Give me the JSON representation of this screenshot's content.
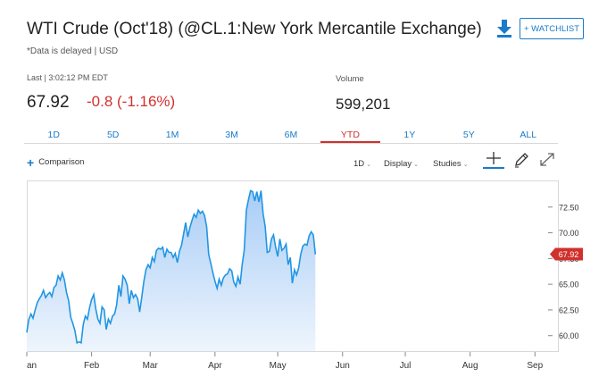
{
  "header": {
    "title": "WTI Crude (Oct'18) (@CL.1:New York Mercantile Exchange)",
    "delay_note": "*Data is delayed | USD",
    "watchlist_label": "+ WATCHLIST",
    "download_icon": "download-icon"
  },
  "quote": {
    "last_label": "Last | 3:02:12 PM EDT",
    "price": "67.92",
    "change": "-0.8 (-1.16%)",
    "volume_label": "Volume",
    "volume_value": "599,201"
  },
  "range_tabs": [
    {
      "label": "1D",
      "active": false
    },
    {
      "label": "5D",
      "active": false
    },
    {
      "label": "1M",
      "active": false
    },
    {
      "label": "3M",
      "active": false
    },
    {
      "label": "6M",
      "active": false
    },
    {
      "label": "YTD",
      "active": true
    },
    {
      "label": "1Y",
      "active": false
    },
    {
      "label": "5Y",
      "active": false
    },
    {
      "label": "ALL",
      "active": false
    }
  ],
  "toolbar": {
    "comparison_label": "Comparison",
    "interval_label": "1D",
    "display_label": "Display",
    "studies_label": "Studies",
    "crosshair_icon": "crosshair-icon",
    "draw_icon": "pencil-icon",
    "expand_icon": "expand-icon"
  },
  "colors": {
    "accent": "#1a7bc8",
    "negative": "#d0312d",
    "line": "#2196e3",
    "fill_top": "#a9cdf6",
    "fill_bottom": "#eef5fd"
  },
  "chart_data": {
    "type": "area",
    "ylim": [
      58.5,
      75.0
    ],
    "xlim": [
      0,
      248
    ],
    "x_ticks": [
      {
        "label": "an",
        "x": 0
      },
      {
        "label": "Feb",
        "x": 31
      },
      {
        "label": "Mar",
        "x": 59
      },
      {
        "label": "Apr",
        "x": 90
      },
      {
        "label": "May",
        "x": 120
      },
      {
        "label": "Jun",
        "x": 151
      },
      {
        "label": "Jul",
        "x": 181
      },
      {
        "label": "Aug",
        "x": 212
      },
      {
        "label": "Sep",
        "x": 243
      }
    ],
    "y_ticks": [
      "72.50",
      "70.00",
      "67.50",
      "65.00",
      "62.50",
      "60.00"
    ],
    "last_value": "67.92",
    "series": [
      {
        "points": [
          [
            0,
            60.3
          ],
          [
            1,
            61.6
          ],
          [
            2,
            62.1
          ],
          [
            3,
            61.7
          ],
          [
            4,
            62.5
          ],
          [
            5,
            63.2
          ],
          [
            6,
            63.6
          ],
          [
            7,
            63.9
          ],
          [
            8,
            64.4
          ],
          [
            9,
            63.7
          ],
          [
            10,
            64.0
          ],
          [
            11,
            64.2
          ],
          [
            12,
            63.8
          ],
          [
            13,
            64.7
          ],
          [
            14,
            64.9
          ],
          [
            15,
            65.8
          ],
          [
            16,
            65.4
          ],
          [
            17,
            66.1
          ],
          [
            18,
            65.4
          ],
          [
            19,
            64.2
          ],
          [
            20,
            63.4
          ],
          [
            21,
            61.8
          ],
          [
            22,
            61.2
          ],
          [
            23,
            60.5
          ],
          [
            24,
            59.3
          ],
          [
            25,
            59.4
          ],
          [
            26,
            59.3
          ],
          [
            27,
            61.1
          ],
          [
            28,
            61.9
          ],
          [
            29,
            61.6
          ],
          [
            30,
            62.7
          ],
          [
            31,
            63.5
          ],
          [
            32,
            64.0
          ],
          [
            33,
            62.6
          ],
          [
            34,
            61.6
          ],
          [
            35,
            61.2
          ],
          [
            36,
            62.8
          ],
          [
            37,
            62.5
          ],
          [
            38,
            60.6
          ],
          [
            39,
            61.6
          ],
          [
            40,
            61.2
          ],
          [
            41,
            61.9
          ],
          [
            42,
            62.1
          ],
          [
            43,
            63.0
          ],
          [
            44,
            64.9
          ],
          [
            45,
            63.8
          ],
          [
            46,
            65.8
          ],
          [
            47,
            65.5
          ],
          [
            48,
            64.9
          ],
          [
            49,
            63.1
          ],
          [
            50,
            64.4
          ],
          [
            51,
            63.7
          ],
          [
            52,
            64.0
          ],
          [
            53,
            63.6
          ],
          [
            54,
            62.3
          ],
          [
            55,
            63.8
          ],
          [
            56,
            65.3
          ],
          [
            57,
            66.4
          ],
          [
            58,
            66.9
          ],
          [
            59,
            66.6
          ],
          [
            60,
            67.6
          ],
          [
            61,
            67.2
          ],
          [
            62,
            68.3
          ],
          [
            63,
            68.5
          ],
          [
            64,
            68.4
          ],
          [
            65,
            68.6
          ],
          [
            66,
            67.6
          ],
          [
            67,
            68.4
          ],
          [
            68,
            68.1
          ],
          [
            69,
            68.1
          ],
          [
            70,
            67.6
          ],
          [
            71,
            68.0
          ],
          [
            72,
            67.1
          ],
          [
            73,
            68.2
          ],
          [
            74,
            68.8
          ],
          [
            75,
            69.9
          ],
          [
            76,
            71.0
          ],
          [
            77,
            69.6
          ],
          [
            78,
            70.5
          ],
          [
            79,
            71.2
          ],
          [
            80,
            71.8
          ],
          [
            81,
            71.5
          ],
          [
            82,
            72.2
          ],
          [
            83,
            71.9
          ],
          [
            84,
            72.1
          ],
          [
            85,
            71.7
          ],
          [
            86,
            70.6
          ],
          [
            87,
            67.9
          ],
          [
            88,
            67.0
          ],
          [
            89,
            66.1
          ],
          [
            90,
            65.3
          ],
          [
            91,
            64.6
          ],
          [
            92,
            65.5
          ],
          [
            93,
            64.9
          ],
          [
            94,
            65.6
          ],
          [
            95,
            65.9
          ],
          [
            96,
            66.0
          ],
          [
            97,
            66.5
          ],
          [
            98,
            66.3
          ],
          [
            99,
            65.2
          ],
          [
            100,
            64.8
          ],
          [
            101,
            65.7
          ],
          [
            102,
            65.0
          ],
          [
            103,
            66.9
          ],
          [
            104,
            68.3
          ],
          [
            105,
            72.2
          ],
          [
            106,
            73.2
          ],
          [
            107,
            74.1
          ],
          [
            108,
            74.0
          ],
          [
            109,
            73.1
          ],
          [
            110,
            74.0
          ],
          [
            111,
            73.0
          ],
          [
            112,
            74.1
          ],
          [
            113,
            71.9
          ],
          [
            114,
            70.6
          ],
          [
            115,
            68.1
          ],
          [
            116,
            68.2
          ],
          [
            117,
            69.4
          ],
          [
            118,
            69.8
          ],
          [
            119,
            68.6
          ],
          [
            120,
            67.7
          ],
          [
            121,
            69.4
          ],
          [
            122,
            68.3
          ],
          [
            123,
            68.5
          ],
          [
            124,
            68.9
          ],
          [
            125,
            66.9
          ],
          [
            126,
            67.6
          ],
          [
            127,
            65.1
          ],
          [
            128,
            66.4
          ],
          [
            129,
            65.9
          ],
          [
            130,
            66.6
          ],
          [
            131,
            67.9
          ],
          [
            132,
            68.7
          ],
          [
            133,
            68.9
          ],
          [
            134,
            68.8
          ],
          [
            135,
            69.7
          ],
          [
            136,
            70.1
          ],
          [
            137,
            69.8
          ],
          [
            138,
            67.9
          ]
        ]
      }
    ]
  }
}
